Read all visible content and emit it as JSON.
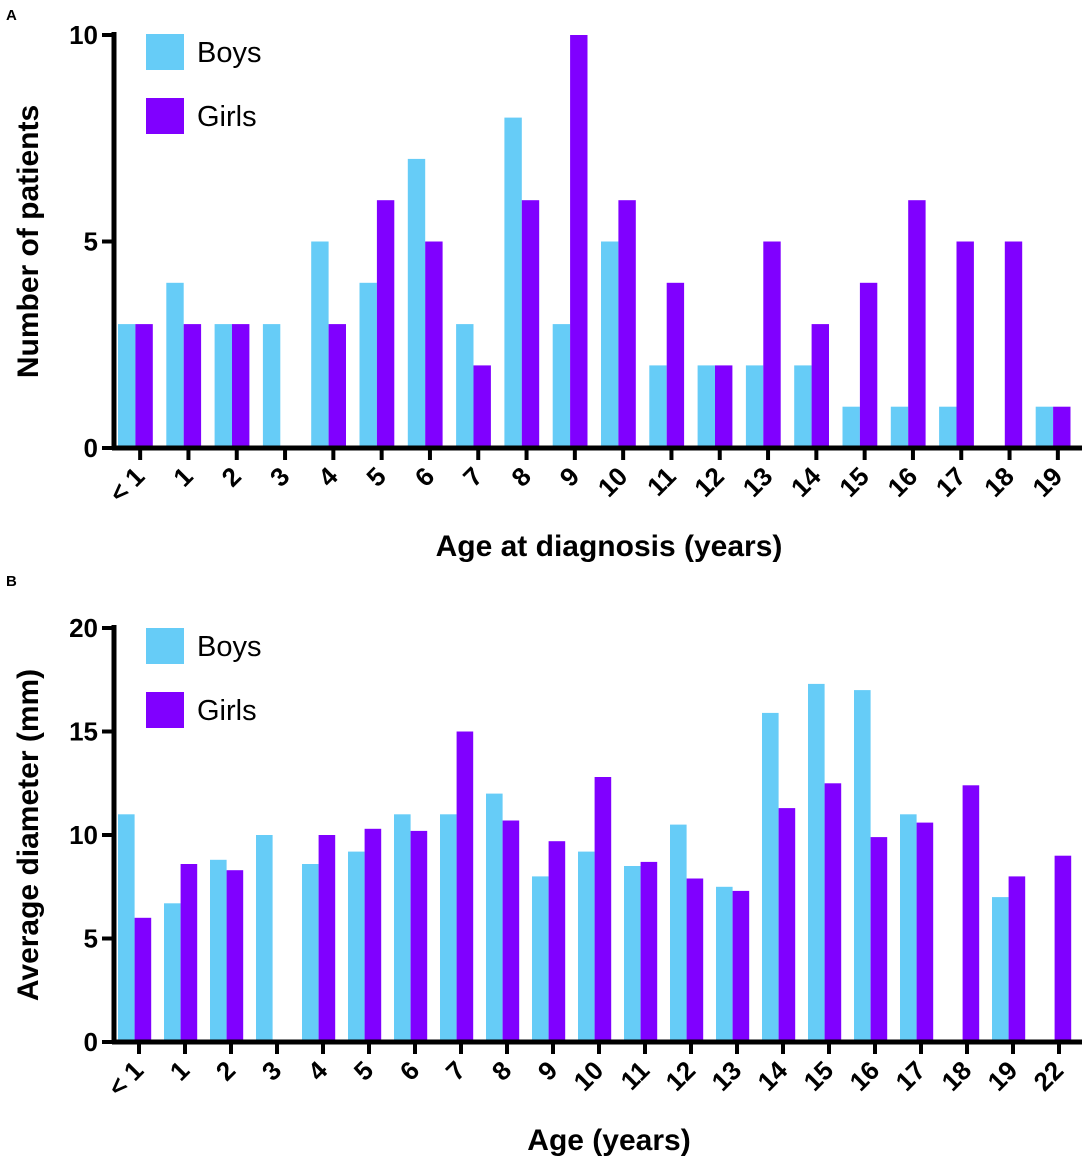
{
  "colors": {
    "boys": "#66ccf7",
    "girls": "#8000ff",
    "axis": "#000000"
  },
  "chart_data": [
    {
      "panel_label": "A",
      "type": "bar",
      "categories": [
        "< 1",
        "1",
        "2",
        "3",
        "4",
        "5",
        "6",
        "7",
        "8",
        "9",
        "10",
        "11",
        "12",
        "13",
        "14",
        "15",
        "16",
        "17",
        "18",
        "19"
      ],
      "series": [
        {
          "name": "Boys",
          "values": [
            3,
            4,
            3,
            3,
            5,
            4,
            7,
            3,
            8,
            3,
            5,
            2,
            2,
            2,
            2,
            1,
            1,
            1,
            0,
            1
          ]
        },
        {
          "name": "Girls",
          "values": [
            3,
            3,
            3,
            0,
            3,
            6,
            5,
            2,
            6,
            10,
            6,
            4,
            2,
            5,
            3,
            4,
            6,
            5,
            5,
            1
          ]
        }
      ],
      "xlabel": "Age at diagnosis (years)",
      "ylabel": "Number of patients",
      "ylim": [
        0,
        10
      ],
      "yticks": [
        0,
        5,
        10
      ],
      "legend_position": "top-left"
    },
    {
      "panel_label": "B",
      "type": "bar",
      "categories": [
        "< 1",
        "1",
        "2",
        "3",
        "4",
        "5",
        "6",
        "7",
        "8",
        "9",
        "10",
        "11",
        "12",
        "13",
        "14",
        "15",
        "16",
        "17",
        "18",
        "19",
        "22"
      ],
      "series": [
        {
          "name": "Boys",
          "values": [
            11,
            6.7,
            8.8,
            10,
            8.6,
            9.2,
            11,
            11,
            12,
            8,
            9.2,
            8.5,
            10.5,
            7.5,
            15.9,
            17.3,
            17,
            11,
            0,
            7,
            0
          ]
        },
        {
          "name": "Girls",
          "values": [
            6,
            8.6,
            8.3,
            0,
            10,
            10.3,
            10.2,
            15,
            10.7,
            9.7,
            12.8,
            8.7,
            7.9,
            7.3,
            11.3,
            12.5,
            9.9,
            10.6,
            12.4,
            8,
            9
          ]
        }
      ],
      "xlabel": "Age (years)",
      "ylabel": "Average diameter (mm)",
      "ylim": [
        0,
        20
      ],
      "yticks": [
        0,
        5,
        10,
        15,
        20
      ],
      "legend_position": "top-left"
    }
  ]
}
